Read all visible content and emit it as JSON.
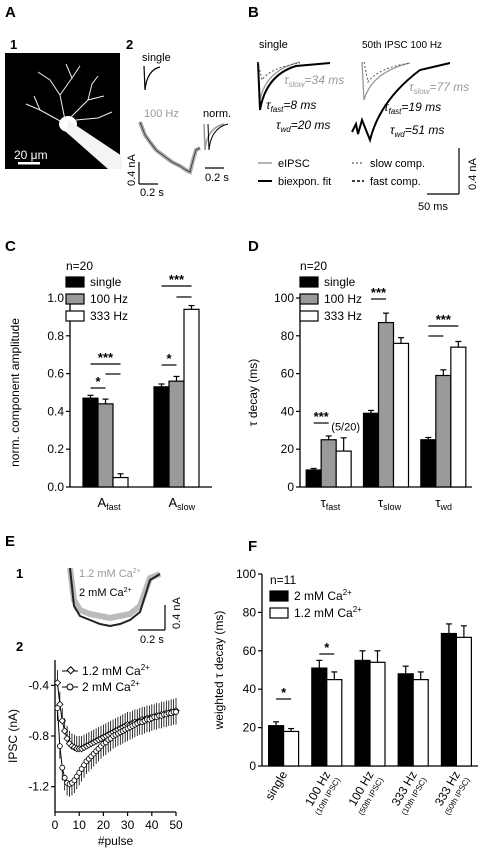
{
  "panels": {
    "A": {
      "letter": "A",
      "sub1": "1",
      "sub2": "2",
      "scale_micro": "20 μm",
      "trace_single": "single",
      "trace_100hz": "100 Hz",
      "trace_norm": "norm.",
      "scale_amp": "0.4 nA",
      "scale_time_left": "0.2 s",
      "scale_time_right": "0.2 s"
    },
    "B": {
      "letter": "B",
      "title_single": "single",
      "title_50th": "50th IPSC 100 Hz",
      "tau_slow_single": "=34 ms",
      "tau_fast_single": "=8 ms",
      "tau_wd_single": "=20 ms",
      "tau_slow_50": "=77 ms",
      "tau_fast_50": "=19 ms",
      "tau_wd_50": "=51 ms",
      "legend_eipsc": "eIPSC",
      "legend_biexp": "biexpon. fit",
      "legend_slow": "slow comp.",
      "legend_fast": "fast comp.",
      "scale_amp": "0.4 nA",
      "scale_time": "50 ms"
    },
    "E": {
      "letter": "E",
      "sub1": "1",
      "sub2": "2",
      "trace_12": "1.2 mM Ca",
      "trace_2": "2 mM Ca",
      "scale_amp": "0.4 nA",
      "scale_time": "0.2 s"
    }
  },
  "chart_data": [
    {
      "id": "C",
      "type": "bar",
      "letter": "C",
      "n_label": "n=20",
      "ylabel": "norm. component amplitude",
      "ylim": [
        0,
        1.0
      ],
      "yticks": [
        "0.0",
        "0.2",
        "0.4",
        "0.6",
        "0.8",
        "1.0"
      ],
      "categories": [
        "A_fast",
        "A_slow"
      ],
      "category_main": [
        "A",
        "A"
      ],
      "category_sub": [
        "fast",
        "slow"
      ],
      "series": [
        {
          "name": "single",
          "color": "#000000",
          "values": [
            0.47,
            0.53
          ],
          "errors": [
            0.015,
            0.015
          ]
        },
        {
          "name": "100 Hz",
          "color": "#9a9a9a",
          "values": [
            0.44,
            0.56
          ],
          "errors": [
            0.025,
            0.025
          ]
        },
        {
          "name": "333 Hz",
          "color": "#ffffff",
          "values": [
            0.05,
            0.94
          ],
          "errors": [
            0.02,
            0.02
          ]
        }
      ],
      "significance": [
        "*",
        "***",
        "*",
        "***"
      ],
      "legend_position": "top-left"
    },
    {
      "id": "D",
      "type": "bar",
      "letter": "D",
      "n_label": "n=20",
      "ylabel": "τ decay (ms)",
      "ylim": [
        0,
        100
      ],
      "yticks": [
        "0",
        "20",
        "40",
        "60",
        "80",
        "100"
      ],
      "categories": [
        "tau_fast",
        "tau_slow",
        "tau_wd"
      ],
      "category_main": [
        "τ",
        "τ",
        "τ"
      ],
      "category_sub": [
        "fast",
        "slow",
        "wd"
      ],
      "series": [
        {
          "name": "single",
          "color": "#000000",
          "values": [
            9,
            39,
            25
          ],
          "errors": [
            0.8,
            1.5,
            1.2
          ]
        },
        {
          "name": "100 Hz",
          "color": "#9a9a9a",
          "values": [
            25,
            87,
            59
          ],
          "errors": [
            2,
            5,
            3
          ]
        },
        {
          "name": "333 Hz",
          "color": "#ffffff",
          "values": [
            19,
            76,
            74
          ],
          "errors": [
            7,
            3,
            3
          ]
        }
      ],
      "annotation": "(5/20)",
      "significance": [
        "***",
        "***",
        "***"
      ],
      "legend_position": "top-left"
    },
    {
      "id": "E2",
      "type": "line",
      "ylabel": "IPSC (nA)",
      "xlabel": "#pulse",
      "xlim": [
        0,
        50
      ],
      "ylim": [
        -1.4,
        -0.2
      ],
      "xticks": [
        "0",
        "10",
        "20",
        "30",
        "40",
        "50"
      ],
      "yticks": [
        "-0.4",
        "-0.8",
        "-1.2"
      ],
      "series": [
        {
          "name": "1.2 mM Ca",
          "marker": "diamond",
          "x": [
            1,
            2,
            3,
            4,
            5,
            6,
            7,
            8,
            9,
            10,
            11,
            12,
            13,
            14,
            15,
            16,
            17,
            18,
            19,
            20,
            21,
            22,
            23,
            24,
            25,
            26,
            27,
            28,
            29,
            30,
            31,
            32,
            33,
            34,
            35,
            36,
            37,
            38,
            39,
            40,
            41,
            42,
            43,
            44,
            45,
            46,
            47,
            48,
            49,
            50
          ],
          "y": [
            -0.38,
            -0.55,
            -0.68,
            -0.76,
            -0.82,
            -0.86,
            -0.88,
            -0.89,
            -0.9,
            -0.9,
            -0.9,
            -0.89,
            -0.88,
            -0.87,
            -0.86,
            -0.85,
            -0.84,
            -0.83,
            -0.82,
            -0.81,
            -0.8,
            -0.79,
            -0.78,
            -0.77,
            -0.76,
            -0.75,
            -0.74,
            -0.73,
            -0.72,
            -0.71,
            -0.71,
            -0.7,
            -0.69,
            -0.69,
            -0.68,
            -0.67,
            -0.67,
            -0.66,
            -0.66,
            -0.65,
            -0.65,
            -0.64,
            -0.64,
            -0.63,
            -0.63,
            -0.62,
            -0.62,
            -0.61,
            -0.61,
            -0.6
          ],
          "error": 0.1
        },
        {
          "name": "2 mM Ca",
          "marker": "circle",
          "x": [
            1,
            2,
            3,
            4,
            5,
            6,
            7,
            8,
            9,
            10,
            11,
            12,
            13,
            14,
            15,
            16,
            17,
            18,
            19,
            20,
            21,
            22,
            23,
            24,
            25,
            26,
            27,
            28,
            29,
            30,
            31,
            32,
            33,
            34,
            35,
            36,
            37,
            38,
            39,
            40,
            41,
            42,
            43,
            44,
            45,
            46,
            47,
            48,
            49,
            50
          ],
          "y": [
            -0.58,
            -0.88,
            -1.05,
            -1.13,
            -1.17,
            -1.18,
            -1.17,
            -1.15,
            -1.12,
            -1.09,
            -1.06,
            -1.03,
            -1.0,
            -0.98,
            -0.96,
            -0.94,
            -0.92,
            -0.9,
            -0.88,
            -0.86,
            -0.85,
            -0.83,
            -0.82,
            -0.8,
            -0.79,
            -0.78,
            -0.77,
            -0.76,
            -0.75,
            -0.74,
            -0.73,
            -0.72,
            -0.71,
            -0.7,
            -0.69,
            -0.69,
            -0.68,
            -0.67,
            -0.67,
            -0.66,
            -0.65,
            -0.65,
            -0.64,
            -0.64,
            -0.63,
            -0.63,
            -0.62,
            -0.62,
            -0.61,
            -0.61
          ],
          "error": 0.1
        }
      ],
      "legend": [
        "1.2 mM Ca",
        "2 mM Ca"
      ],
      "legend_position": "top-left"
    },
    {
      "id": "F",
      "type": "bar",
      "letter": "F",
      "n_label": "n=11",
      "ylabel": "weighted τ decay (ms)",
      "ylim": [
        0,
        100
      ],
      "yticks": [
        "0",
        "20",
        "40",
        "60",
        "80",
        "100"
      ],
      "categories": [
        "single",
        "100 Hz (10th IPSC)",
        "100 Hz (50th IPSC)",
        "333 Hz (10th IPSC)",
        "333 Hz (50th IPSC)"
      ],
      "category_main": [
        "single",
        "100 Hz",
        "100 Hz",
        "333 Hz",
        "333 Hz"
      ],
      "category_sub": [
        "",
        "(10th IPSC)",
        "(50th IPSC)",
        "(10th IPSC)",
        "(50th IPSC)"
      ],
      "series": [
        {
          "name": "2 mM Ca",
          "color": "#000000",
          "values": [
            21,
            51,
            55,
            48,
            69
          ],
          "errors": [
            2,
            4,
            5,
            4,
            5
          ]
        },
        {
          "name": "1.2 mM Ca",
          "color": "#ffffff",
          "values": [
            18,
            45,
            54,
            45,
            67
          ],
          "errors": [
            1.5,
            4,
            6,
            4,
            6
          ]
        }
      ],
      "significance": [
        "*",
        "*"
      ],
      "legend_position": "top-left"
    }
  ]
}
